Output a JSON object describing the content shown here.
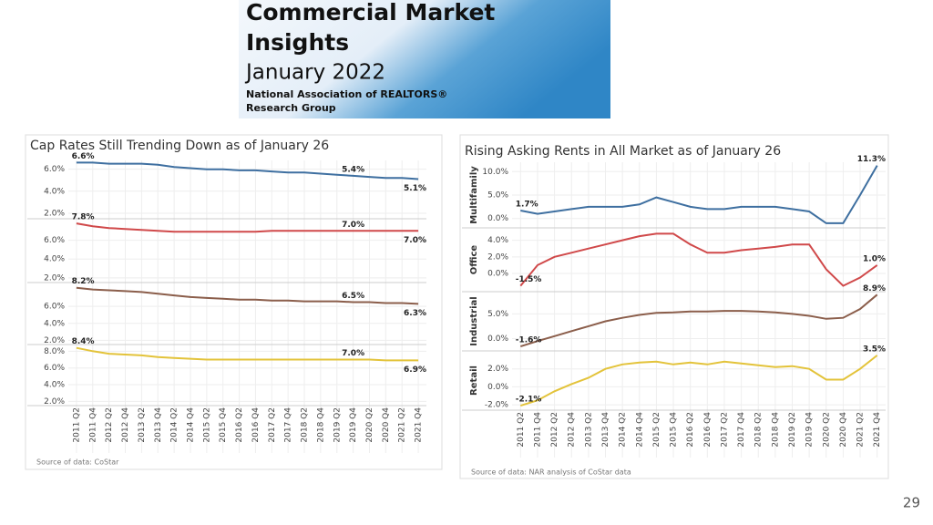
{
  "header": {
    "title_lines": [
      "Commercial Market",
      "Insights"
    ],
    "subtitle": "January 2022",
    "org_lines": [
      "National Association of REALTORS®",
      "Research Group"
    ]
  },
  "page_number": "29",
  "chart_data": [
    {
      "type": "line",
      "title": "Cap Rates Still Trending Down as of January 26",
      "source": "Source of data: CoStar",
      "grid": true,
      "categories": [
        "2011 Q2",
        "2011 Q4",
        "2012 Q2",
        "2012 Q4",
        "2013 Q2",
        "2013 Q4",
        "2014 Q2",
        "2014 Q4",
        "2015 Q2",
        "2015 Q4",
        "2016 Q2",
        "2016 Q4",
        "2017 Q2",
        "2017 Q4",
        "2018 Q2",
        "2018 Q4",
        "2019 Q2",
        "2019 Q4",
        "2020 Q2",
        "2020 Q4",
        "2021 Q2",
        "2021 Q4"
      ],
      "panels": [
        {
          "ylim": [
            1.5,
            6.8
          ],
          "yticks": [
            {
              "value": 2,
              "label": "2.0%"
            },
            {
              "value": 4,
              "label": "4.0%"
            },
            {
              "value": 6,
              "label": "6.0%"
            }
          ],
          "series": [
            {
              "color": "#3e6fa0",
              "values": [
                6.6,
                6.6,
                6.5,
                6.5,
                6.5,
                6.4,
                6.2,
                6.1,
                6.0,
                6.0,
                5.9,
                5.9,
                5.8,
                5.7,
                5.7,
                5.6,
                5.5,
                5.4,
                5.3,
                5.2,
                5.2,
                5.1
              ],
              "value_labels": [
                "6.6%",
                null,
                null,
                null,
                null,
                null,
                null,
                null,
                null,
                null,
                null,
                null,
                null,
                null,
                null,
                null,
                null,
                "5.4%",
                null,
                null,
                null,
                "5.1%"
              ]
            }
          ]
        },
        {
          "ylim": [
            1.5,
            8.0
          ],
          "yticks": [
            {
              "value": 2,
              "label": "2.0%"
            },
            {
              "value": 4,
              "label": "4.0%"
            },
            {
              "value": 6,
              "label": "6.0%"
            }
          ],
          "series": [
            {
              "color": "#d0494a",
              "values": [
                7.8,
                7.5,
                7.3,
                7.2,
                7.1,
                7.0,
                6.9,
                6.9,
                6.9,
                6.9,
                6.9,
                6.9,
                7.0,
                7.0,
                7.0,
                7.0,
                7.0,
                7.0,
                7.0,
                7.0,
                7.0,
                7.0
              ],
              "value_labels": [
                "7.8%",
                null,
                null,
                null,
                null,
                null,
                null,
                null,
                null,
                null,
                null,
                null,
                null,
                null,
                null,
                null,
                null,
                "7.0%",
                null,
                null,
                null,
                "7.0%"
              ]
            }
          ]
        },
        {
          "ylim": [
            1.5,
            8.6
          ],
          "yticks": [
            {
              "value": 2,
              "label": "2.0%"
            },
            {
              "value": 4,
              "label": "4.0%"
            },
            {
              "value": 6,
              "label": "6.0%"
            }
          ],
          "series": [
            {
              "color": "#8b5e4b",
              "values": [
                8.2,
                8.0,
                7.9,
                7.8,
                7.7,
                7.5,
                7.3,
                7.1,
                7.0,
                6.9,
                6.8,
                6.8,
                6.7,
                6.7,
                6.6,
                6.6,
                6.6,
                6.5,
                6.5,
                6.4,
                6.4,
                6.3
              ],
              "value_labels": [
                "8.2%",
                null,
                null,
                null,
                null,
                null,
                null,
                null,
                null,
                null,
                null,
                null,
                null,
                null,
                null,
                null,
                null,
                "6.5%",
                null,
                null,
                null,
                "6.3%"
              ]
            }
          ]
        },
        {
          "ylim": [
            1.5,
            8.8
          ],
          "yticks": [
            {
              "value": 2,
              "label": "2.0%"
            },
            {
              "value": 4,
              "label": "4.0%"
            },
            {
              "value": 6,
              "label": "6.0%"
            },
            {
              "value": 8,
              "label": "8.0%"
            }
          ],
          "series": [
            {
              "color": "#e3c33a",
              "values": [
                8.4,
                8.0,
                7.7,
                7.6,
                7.5,
                7.3,
                7.2,
                7.1,
                7.0,
                7.0,
                7.0,
                7.0,
                7.0,
                7.0,
                7.0,
                7.0,
                7.0,
                7.0,
                7.0,
                6.9,
                6.9,
                6.9
              ],
              "value_labels": [
                "8.4%",
                null,
                null,
                null,
                null,
                null,
                null,
                null,
                null,
                null,
                null,
                null,
                null,
                null,
                null,
                null,
                null,
                "7.0%",
                null,
                null,
                null,
                "6.9%"
              ]
            }
          ]
        }
      ]
    },
    {
      "type": "line",
      "title": "Rising Asking Rents in All Market as of January 26",
      "source": "Source of data: NAR analysis of CoStar data",
      "grid": true,
      "categories": [
        "2011 Q2",
        "2011 Q4",
        "2012 Q2",
        "2012 Q4",
        "2013 Q2",
        "2013 Q4",
        "2014 Q2",
        "2014 Q4",
        "2015 Q2",
        "2015 Q4",
        "2016 Q2",
        "2016 Q4",
        "2017 Q2",
        "2017 Q4",
        "2018 Q2",
        "2018 Q4",
        "2019 Q2",
        "2019 Q4",
        "2020 Q2",
        "2020 Q4",
        "2021 Q2",
        "2021 Q4"
      ],
      "panels": [
        {
          "ylabel": "Multifamily",
          "ylim": [
            -2,
            12
          ],
          "yticks": [
            {
              "value": 0,
              "label": "0.0%"
            },
            {
              "value": 5,
              "label": "5.0%"
            },
            {
              "value": 10,
              "label": "10.0%"
            }
          ],
          "series": [
            {
              "color": "#3e6fa0",
              "values": [
                1.7,
                1.0,
                1.5,
                2.0,
                2.5,
                2.5,
                2.5,
                3.0,
                4.5,
                3.5,
                2.5,
                2.0,
                2.0,
                2.5,
                2.5,
                2.5,
                2.0,
                1.5,
                -1.0,
                -1.0,
                5.0,
                11.3
              ],
              "value_labels": [
                "1.7%",
                null,
                null,
                null,
                null,
                null,
                null,
                null,
                null,
                null,
                null,
                null,
                null,
                null,
                null,
                null,
                null,
                null,
                null,
                null,
                null,
                "11.3%"
              ]
            }
          ]
        },
        {
          "ylabel": "Office",
          "ylim": [
            -2.2,
            5.5
          ],
          "yticks": [
            {
              "value": 0,
              "label": "0.0%"
            },
            {
              "value": 2,
              "label": "2.0%"
            },
            {
              "value": 4,
              "label": "4.0%"
            }
          ],
          "series": [
            {
              "color": "#d0494a",
              "values": [
                -1.5,
                1.0,
                2.0,
                2.5,
                3.0,
                3.5,
                4.0,
                4.5,
                4.8,
                4.8,
                3.5,
                2.5,
                2.5,
                2.8,
                3.0,
                3.2,
                3.5,
                3.5,
                0.5,
                -1.5,
                -0.5,
                1.0
              ],
              "value_labels": [
                "-1.5%",
                null,
                null,
                null,
                null,
                null,
                null,
                null,
                null,
                null,
                null,
                null,
                null,
                null,
                null,
                null,
                null,
                null,
                null,
                null,
                null,
                "1.0%"
              ]
            }
          ]
        },
        {
          "ylabel": "Industrial",
          "ylim": [
            -2.5,
            9.5
          ],
          "yticks": [
            {
              "value": 0,
              "label": "0.0%"
            },
            {
              "value": 5,
              "label": "5.0%"
            }
          ],
          "series": [
            {
              "color": "#8b5e4b",
              "values": [
                -1.6,
                -0.5,
                0.5,
                1.5,
                2.5,
                3.5,
                4.2,
                4.8,
                5.2,
                5.3,
                5.5,
                5.5,
                5.6,
                5.6,
                5.5,
                5.3,
                5.0,
                4.6,
                4.0,
                4.2,
                6.0,
                8.9
              ],
              "value_labels": [
                "-1.6%",
                null,
                null,
                null,
                null,
                null,
                null,
                null,
                null,
                null,
                null,
                null,
                null,
                null,
                null,
                null,
                null,
                null,
                null,
                null,
                null,
                "8.9%"
              ]
            }
          ]
        },
        {
          "ylabel": "Retail",
          "ylim": [
            -2.6,
            4
          ],
          "yticks": [
            {
              "value": -2,
              "label": "-2.0%"
            },
            {
              "value": 0,
              "label": "0.0%"
            },
            {
              "value": 2,
              "label": "2.0%"
            }
          ],
          "series": [
            {
              "color": "#e3c33a",
              "values": [
                -2.1,
                -1.5,
                -0.5,
                0.3,
                1.0,
                2.0,
                2.5,
                2.7,
                2.8,
                2.5,
                2.7,
                2.5,
                2.8,
                2.6,
                2.4,
                2.2,
                2.3,
                2.0,
                0.8,
                0.8,
                2.0,
                3.5
              ],
              "value_labels": [
                "-2.1%",
                null,
                null,
                null,
                null,
                null,
                null,
                null,
                null,
                null,
                null,
                null,
                null,
                null,
                null,
                null,
                null,
                null,
                null,
                null,
                null,
                "3.5%"
              ]
            }
          ]
        }
      ]
    }
  ]
}
